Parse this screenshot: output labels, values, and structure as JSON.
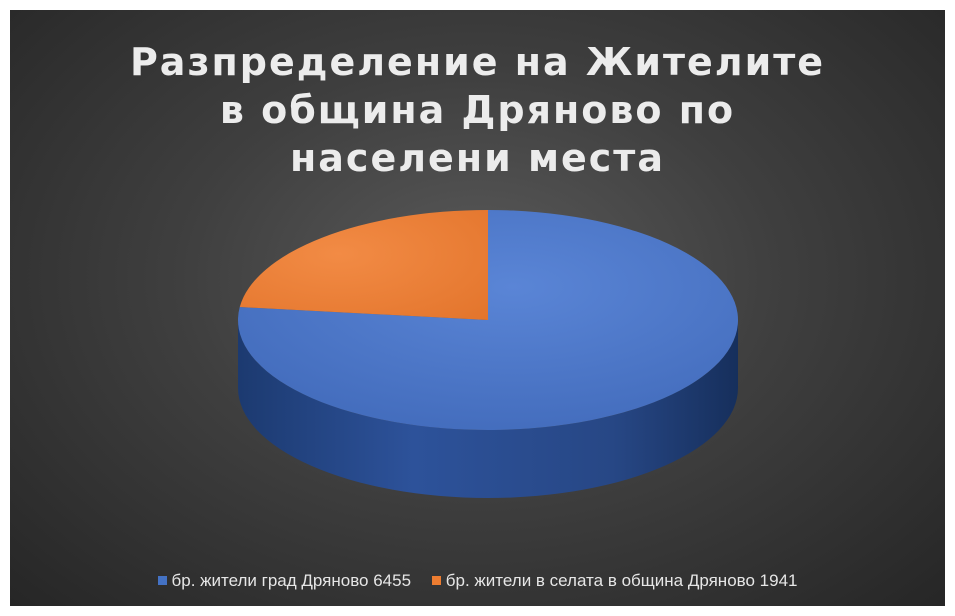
{
  "chart_data": {
    "type": "pie",
    "title": "Разпределение на Жителите в община Дряново по населени места",
    "categories": [
      "бр. жители град Дряново 6455",
      "бр. жители в селата в община Дряново 1941"
    ],
    "values": [
      6455,
      1941
    ],
    "colors": [
      "#4472c4",
      "#ed7d31"
    ],
    "legend_position": "bottom",
    "style": "3d"
  }
}
